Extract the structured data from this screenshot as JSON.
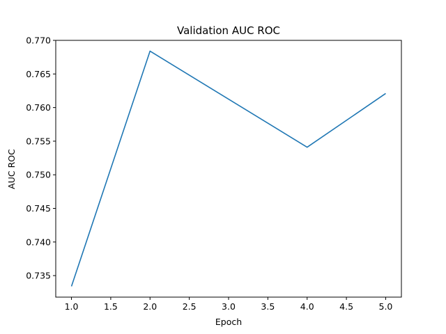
{
  "chart_data": {
    "type": "line",
    "title": "Validation AUC ROC",
    "xlabel": "Epoch",
    "ylabel": "AUC ROC",
    "xlim": [
      0.8,
      5.2
    ],
    "ylim": [
      0.7318,
      0.77
    ],
    "xticks": [
      1.0,
      1.5,
      2.0,
      2.5,
      3.0,
      3.5,
      4.0,
      4.5,
      5.0
    ],
    "xtick_labels": [
      "1.0",
      "1.5",
      "2.0",
      "2.5",
      "3.0",
      "3.5",
      "4.0",
      "4.5",
      "5.0"
    ],
    "yticks": [
      0.735,
      0.74,
      0.745,
      0.75,
      0.755,
      0.76,
      0.765,
      0.77
    ],
    "ytick_labels": [
      "0.735",
      "0.740",
      "0.745",
      "0.750",
      "0.755",
      "0.760",
      "0.765",
      "0.770"
    ],
    "grid": false,
    "series": [
      {
        "color": "#1f77b4",
        "x": [
          1,
          2,
          4,
          5
        ],
        "y": [
          0.7334,
          0.7684,
          0.7541,
          0.7621
        ]
      }
    ]
  }
}
